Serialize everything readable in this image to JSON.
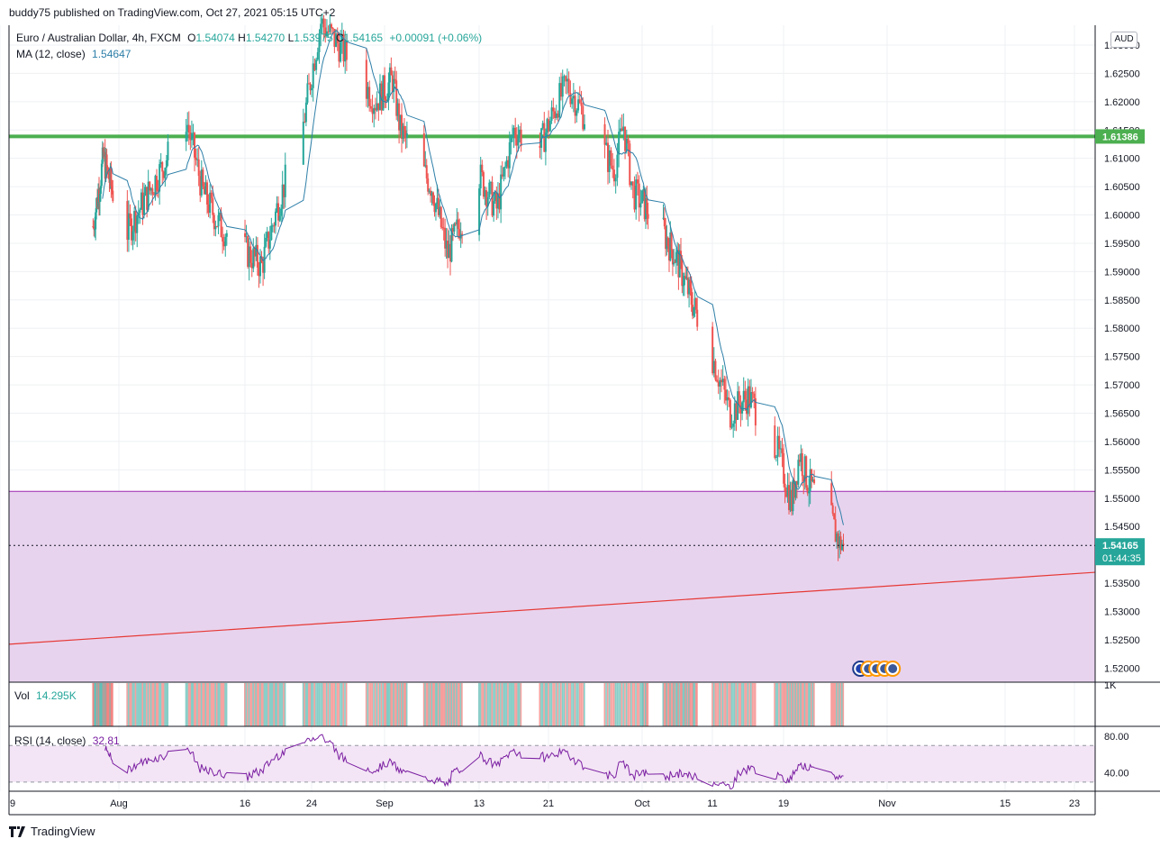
{
  "publisher_line": "buddy75 published on TradingView.com, Oct 27, 2021 05:15 UTC+2",
  "legend": {
    "symbol": "Euro / Australian Dollar, 4h, FXCM",
    "open_label": "O",
    "open": "1.54074",
    "high_label": "H",
    "high": "1.54270",
    "low_label": "L",
    "low": "1.53975",
    "close_label": "C",
    "close": "1.54165",
    "change": "+0.00091 (+0.06%)",
    "ma_label": "MA (12, close)",
    "ma_value": "1.54647"
  },
  "currency_button": "AUD",
  "volume": {
    "label": "Vol",
    "value": "14.295K",
    "axis_label": "1K"
  },
  "rsi": {
    "label": "RSI (14, close)",
    "value": "32.81",
    "axis_ticks": [
      "80.00",
      "40.00"
    ]
  },
  "price_labels": {
    "resistance": "1.61386",
    "last_price": "1.54165",
    "countdown": "01:44:35"
  },
  "footer": {
    "brand": "TradingView",
    "logo": "tradingview-logo"
  },
  "colors": {
    "up": "#26a69a",
    "down": "#ef5350",
    "ma": "#2e7fa8",
    "resistance": "#4caf50",
    "zone_fill": "#e8d3ee",
    "zone_border": "#9c27b0",
    "trendline": "#e53935",
    "rsi_line": "#7b1fa2",
    "rsi_band": "#f3e5f5"
  },
  "chart_data": {
    "type": "candlestick",
    "yticks": [
      "1.52000",
      "1.52500",
      "1.53000",
      "1.53500",
      "1.54000",
      "1.54500",
      "1.55000",
      "1.55500",
      "1.56000",
      "1.56500",
      "1.57000",
      "1.57500",
      "1.58000",
      "1.58500",
      "1.59000",
      "1.59500",
      "1.60000",
      "1.60500",
      "1.61000",
      "1.61500",
      "1.62000",
      "1.62500",
      "1.63000"
    ],
    "ylim": [
      1.5175,
      1.6335
    ],
    "xticks": [
      "9",
      "Aug",
      "16",
      "24",
      "Sep",
      "13",
      "21",
      "Oct",
      "11",
      "19",
      "Nov",
      "15",
      "23"
    ],
    "price_path_key_points": [
      {
        "date": "Jul 27",
        "price": 1.598
      },
      {
        "date": "Jul 29",
        "price": 1.61
      },
      {
        "date": "Aug 2",
        "price": 1.597
      },
      {
        "date": "Aug 6",
        "price": 1.608
      },
      {
        "date": "Aug 9",
        "price": 1.617
      },
      {
        "date": "Aug 11",
        "price": 1.604
      },
      {
        "date": "Aug 13",
        "price": 1.598
      },
      {
        "date": "Aug 18",
        "price": 1.591
      },
      {
        "date": "Aug 20",
        "price": 1.602
      },
      {
        "date": "Aug 23",
        "price": 1.616
      },
      {
        "date": "Aug 25",
        "price": 1.634
      },
      {
        "date": "Aug 27",
        "price": 1.63
      },
      {
        "date": "Aug 31",
        "price": 1.62
      },
      {
        "date": "Sep 2",
        "price": 1.624
      },
      {
        "date": "Sep 3",
        "price": 1.615
      },
      {
        "date": "Sep 7",
        "price": 1.605
      },
      {
        "date": "Sep 9",
        "price": 1.593
      },
      {
        "date": "Sep 13",
        "price": 1.607
      },
      {
        "date": "Sep 15",
        "price": 1.601
      },
      {
        "date": "Sep 17",
        "price": 1.615
      },
      {
        "date": "Sep 20",
        "price": 1.612
      },
      {
        "date": "Sep 22",
        "price": 1.62
      },
      {
        "date": "Sep 23",
        "price": 1.623
      },
      {
        "date": "Sep 28",
        "price": 1.608
      },
      {
        "date": "Sep 29",
        "price": 1.616
      },
      {
        "date": "Sep 30",
        "price": 1.604
      },
      {
        "date": "Oct 4",
        "price": 1.597
      },
      {
        "date": "Oct 6",
        "price": 1.592
      },
      {
        "date": "Oct 8",
        "price": 1.585
      },
      {
        "date": "Oct 11",
        "price": 1.575
      },
      {
        "date": "Oct 13",
        "price": 1.565
      },
      {
        "date": "Oct 15",
        "price": 1.568
      },
      {
        "date": "Oct 18",
        "price": 1.56
      },
      {
        "date": "Oct 20",
        "price": 1.549
      },
      {
        "date": "Oct 21",
        "price": 1.558
      },
      {
        "date": "Oct 22",
        "price": 1.553
      },
      {
        "date": "Oct 25",
        "price": 1.546
      },
      {
        "date": "Oct 26",
        "price": 1.542
      }
    ],
    "last_price": 1.54165,
    "resistance_level": 1.61386,
    "demand_zone": [
      1.5175,
      1.5512
    ],
    "rsi_ylim": [
      20,
      90
    ],
    "rsi_bands": [
      70,
      30
    ]
  }
}
